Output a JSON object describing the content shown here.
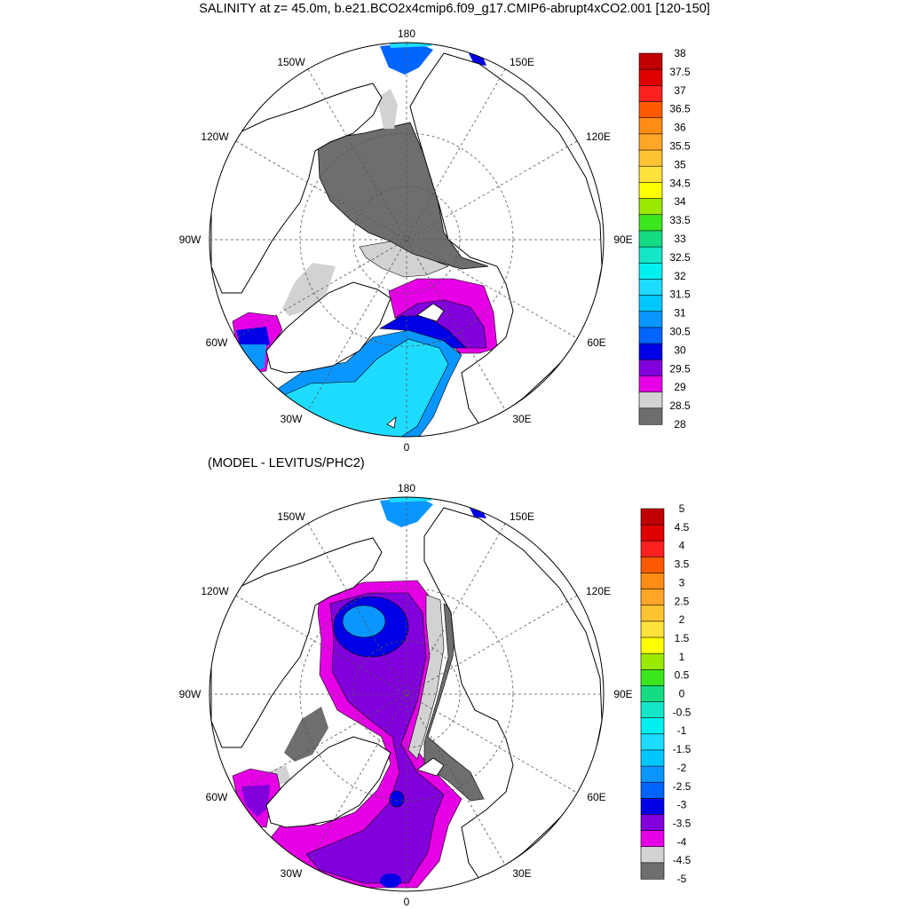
{
  "title": "SALINITY at z=  45.0m, b.e21.BCO2x4cmip6.f09_g17.CMIP6-abrupt4xCO2.001 [120-150]",
  "subtitle": "(MODEL - LEVITUS/PHC2)",
  "longitude_labels": {
    "lon_180": "180",
    "lon_150W": "150W",
    "lon_150E": "150E",
    "lon_120W": "120W",
    "lon_120E": "120E",
    "lon_90W": "90W",
    "lon_90E": "90E",
    "lon_60W": "60W",
    "lon_60E": "60E",
    "lon_30W": "30W",
    "lon_30E": "30E",
    "lon_0": "0"
  },
  "chart_data": [
    {
      "type": "heatmap",
      "projection": "north polar stereographic",
      "variable": "SALINITY",
      "depth": "45.0m",
      "colorbar": {
        "labels": [
          "38",
          "37.5",
          "37",
          "36.5",
          "36",
          "35.5",
          "35",
          "34.5",
          "34",
          "33.5",
          "33",
          "32.5",
          "32",
          "31.5",
          "31",
          "30.5",
          "30",
          "29.5",
          "29",
          "28.5",
          "28"
        ],
        "colors": [
          "#c00000",
          "#e00000",
          "#ff2020",
          "#ff5a00",
          "#ff8c14",
          "#ffa628",
          "#ffc432",
          "#ffe23c",
          "#ffff00",
          "#9be800",
          "#3ce61e",
          "#14dc82",
          "#14e6c8",
          "#00f0f0",
          "#1edcff",
          "#00c8ff",
          "#0a96ff",
          "#0064ff",
          "#0000e6",
          "#8200dc",
          "#e600e6",
          "#d2d2d2",
          "#6e6e6e"
        ]
      }
    },
    {
      "type": "heatmap",
      "projection": "north polar stereographic",
      "variable": "MODEL - LEVITUS/PHC2",
      "colorbar": {
        "labels": [
          "5",
          "4.5",
          "4",
          "3.5",
          "3",
          "2.5",
          "2",
          "1.5",
          "1",
          "0.5",
          "0",
          "-0.5",
          "-1",
          "-1.5",
          "-2",
          "-2.5",
          "-3",
          "-3.5",
          "-4",
          "-4.5",
          "-5"
        ],
        "colors": [
          "#c00000",
          "#e00000",
          "#ff2020",
          "#ff5a00",
          "#ff8c14",
          "#ffa628",
          "#ffc432",
          "#ffe23c",
          "#ffff00",
          "#9be800",
          "#3ce61e",
          "#14dc82",
          "#14e6c8",
          "#00f0f0",
          "#1edcff",
          "#00c8ff",
          "#0a96ff",
          "#0064ff",
          "#0000e6",
          "#8200dc",
          "#e600e6",
          "#d2d2d2",
          "#6e6e6e"
        ]
      }
    }
  ]
}
